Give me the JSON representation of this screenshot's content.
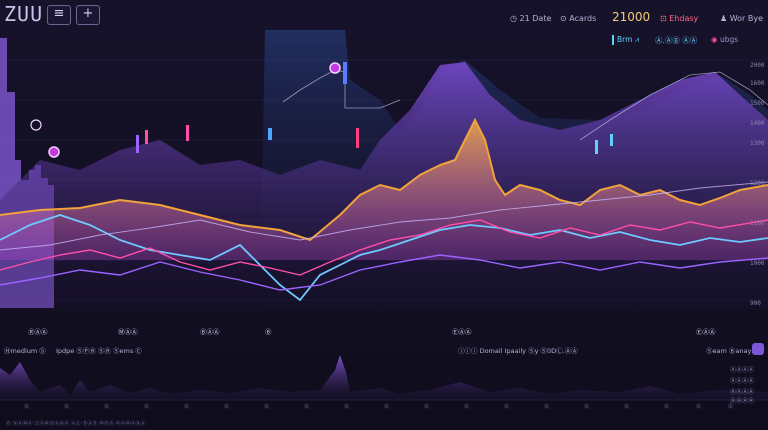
{
  "header": {
    "brand": "ZUU",
    "menu_icon": "≡",
    "add_icon": "+",
    "stats": [
      {
        "label": "21 Date",
        "icon": "clock-icon"
      },
      {
        "label": "Acards",
        "icon": "circle-icon"
      },
      {
        "label": "21000",
        "icon": ""
      },
      {
        "label": "Ehdasy",
        "icon": "tag-icon"
      },
      {
        "label": "Wor Bye",
        "icon": "user-icon"
      }
    ]
  },
  "legend": [
    {
      "label": "Brm ⩘",
      "color": "#5fd0ff"
    },
    {
      "label": "Ⓐ.ⒶⒷ ⒶⒶ",
      "color": "#5fd0ff"
    },
    {
      "label": "ubgs",
      "color": "#9a93c0"
    }
  ],
  "y_axis": [
    "2000",
    "1600",
    "1500",
    "1400",
    "1300",
    "1200",
    "1100",
    "1000",
    "900"
  ],
  "x_axis": [
    "ⓇⒶⒶ",
    "ⓂⒶⒶ",
    "ⒷⒶⒶ",
    "Ⓑ",
    "ⒺⒶⒶ",
    "ⒺⒶⒶ"
  ],
  "controls": {
    "left": "Ⓗmedium ⓑ",
    "left2": "Ipdpe ⓈⓅⓇ ⓈⓇ Ⓢems Ⓒ",
    "center": "ⓘⓘⓘ Domail Ipaaily Ⓢy Ⓢ0DⓁ.ⒶⒶ",
    "right": "Ⓢeam Ⓑanays"
  },
  "bottom_axis": [
    "ⒶⒶⒶⒶ",
    "ⒶⒶⒶⒶ",
    "ⒶⒶⒶⒶ",
    "ⒶⒶⒶⒶ"
  ],
  "bottom_x": [
    "Ⓢ",
    "Ⓢ",
    "Ⓢ",
    "Ⓢ",
    "Ⓢ",
    "Ⓢ",
    "Ⓢ",
    "Ⓢ",
    "Ⓢ",
    "Ⓢ",
    "Ⓢ",
    "Ⓢ",
    "Ⓢ",
    "Ⓢ",
    "Ⓢ",
    "Ⓢ",
    "Ⓢ",
    "Ⓢ",
    "Ⓢ"
  ],
  "footer": "Ⓑ ⓃⒶⓂⒶ ⓈⒶⓂⒷⒶⓃⒶ ⒶⓈ ⒷⒶⒷ ⓂⒷⒶ ⓂⒶⓂⒶⓃⒶ",
  "colors": {
    "orange": "#f2a33a",
    "blue": "#6fc8ff",
    "purple": "#9b63ff",
    "magenta": "#ff4fa8",
    "violet_fill": "#6d3fb8"
  }
}
